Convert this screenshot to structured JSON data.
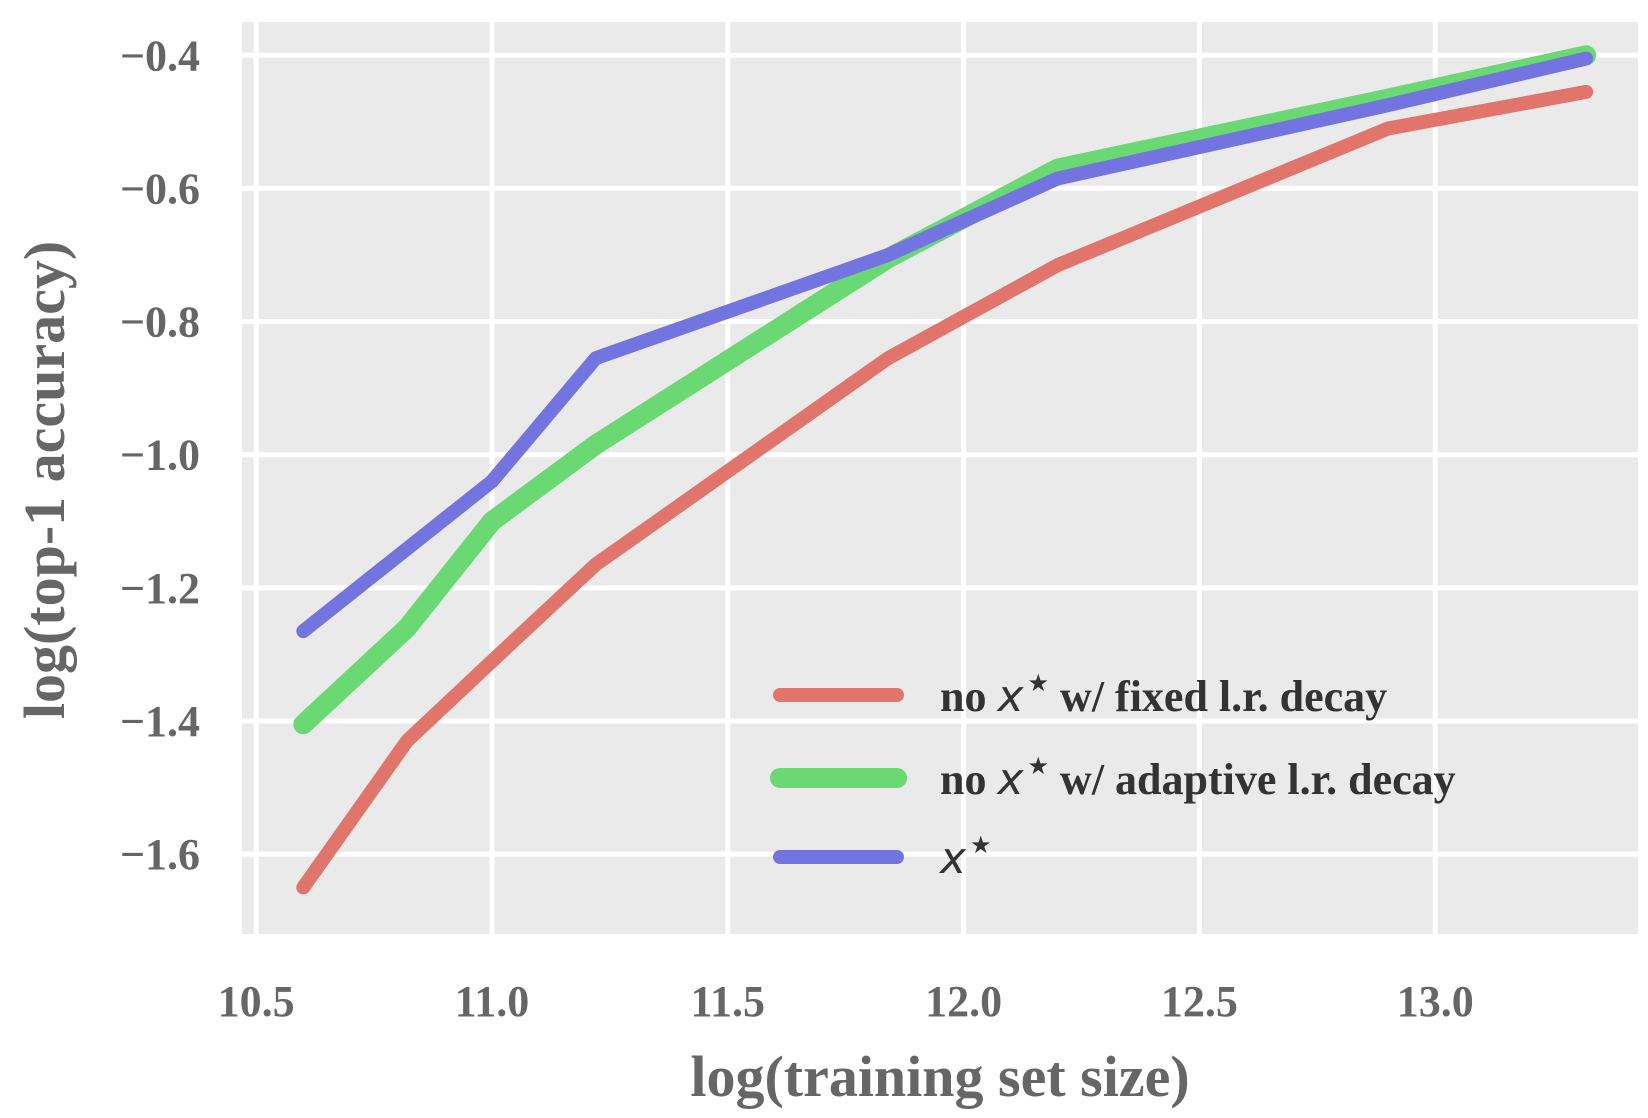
{
  "chart_data": {
    "type": "line",
    "xlabel": "log(training set size)",
    "ylabel": "log(top-1 accuracy)",
    "xlim": [
      10.47,
      13.43
    ],
    "ylim": [
      -1.72,
      -0.35
    ],
    "xticks": [
      10.5,
      11.0,
      11.5,
      12.0,
      12.5,
      13.0
    ],
    "xtick_labels": [
      "10.5",
      "11.0",
      "11.5",
      "12.0",
      "12.5",
      "13.0"
    ],
    "yticks": [
      -1.6,
      -1.4,
      -1.2,
      -1.0,
      -0.8,
      -0.6,
      -0.4
    ],
    "ytick_labels": [
      "−1.6",
      "−1.4",
      "−1.2",
      "−1.0",
      "−0.8",
      "−0.6",
      "−0.4"
    ],
    "grid": true,
    "background": "#EAEAEA",
    "legend_position": "lower-right",
    "series": [
      {
        "name": "no x* w/ fixed l.r. decay",
        "legend_prefix": "no ",
        "legend_math": "x",
        "legend_star": "★",
        "legend_suffix": " w/ fixed l.r. decay",
        "color": "#E1756C",
        "x": [
          10.6,
          10.82,
          11.0,
          11.22,
          11.84,
          12.2,
          12.9,
          13.32
        ],
        "y": [
          -1.65,
          -1.43,
          -1.31,
          -1.165,
          -0.855,
          -0.715,
          -0.51,
          -0.455
        ]
      },
      {
        "name": "no x* w/ adaptive l.r. decay",
        "legend_prefix": "no ",
        "legend_math": "x",
        "legend_star": "★",
        "legend_suffix": " w/ adaptive l.r. decay",
        "color": "#6AD974",
        "x": [
          10.6,
          10.82,
          11.0,
          11.22,
          11.84,
          12.2,
          12.9,
          13.32
        ],
        "y": [
          -1.405,
          -1.26,
          -1.1,
          -0.985,
          -0.705,
          -0.57,
          -0.465,
          -0.4
        ]
      },
      {
        "name": "x*",
        "legend_prefix": "",
        "legend_math": "x",
        "legend_star": "★",
        "legend_suffix": "",
        "color": "#7474E0",
        "x": [
          10.6,
          11.0,
          11.22,
          11.84,
          12.2,
          12.9,
          13.32
        ],
        "y": [
          -1.265,
          -1.04,
          -0.855,
          -0.7,
          -0.585,
          -0.475,
          -0.405
        ]
      }
    ]
  }
}
